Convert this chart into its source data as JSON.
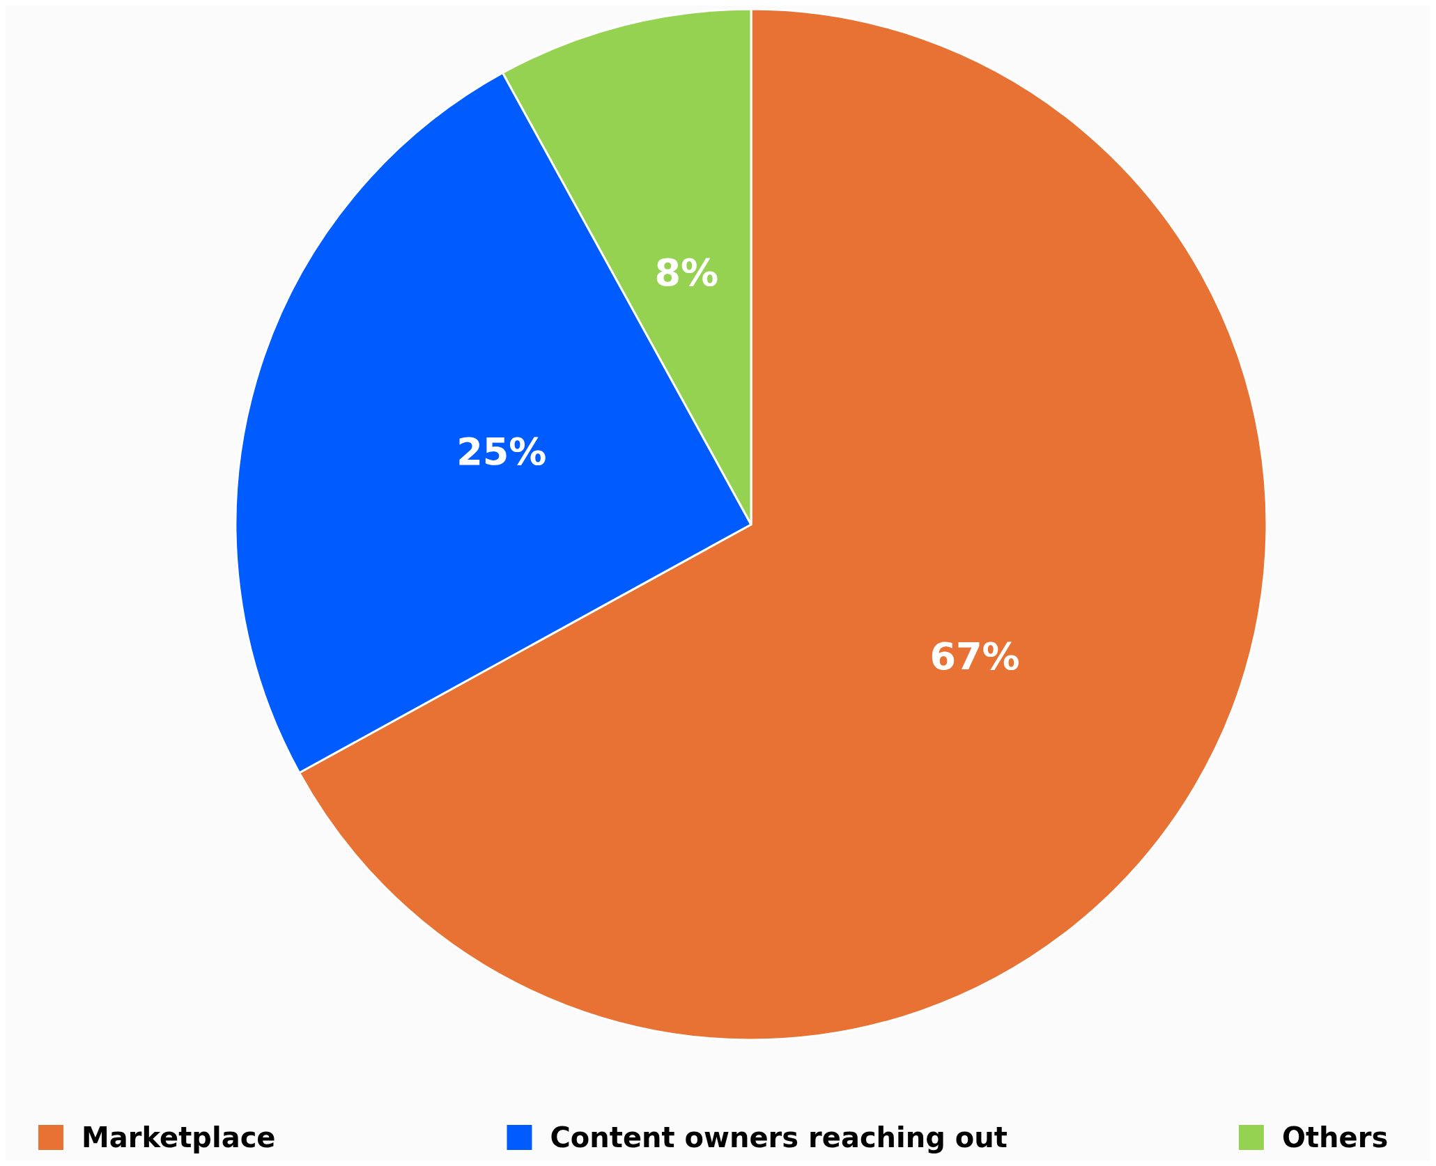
{
  "chart_data": {
    "type": "pie",
    "categories": [
      "Marketplace",
      "Content owners reaching out",
      "Others"
    ],
    "values": [
      67,
      25,
      8
    ],
    "colors": [
      "#e87234",
      "#005cff",
      "#95d251"
    ],
    "value_labels": [
      "67%",
      "25%",
      "8%"
    ],
    "legend": "bottom"
  }
}
